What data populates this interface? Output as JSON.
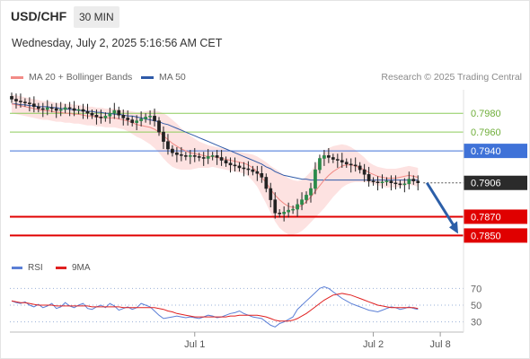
{
  "header": {
    "symbol": "USD/CHF",
    "timeframe": "30 MIN",
    "datetime": "Wednesday, July 2, 2025 5:16:56 AM CET"
  },
  "legend": {
    "ma20": {
      "label": "MA 20 + Bollinger Bands",
      "color": "#f28b86"
    },
    "ma50": {
      "label": "MA 50",
      "color": "#2f5aa8"
    }
  },
  "copyright": "Research © 2025 Trading Central",
  "rsi_legend": {
    "rsi": {
      "label": "RSI",
      "color": "#5b7fd6"
    },
    "ma9": {
      "label": "9MA",
      "color": "#e02020"
    }
  },
  "chart_data": [
    {
      "type": "candlestick",
      "title": "USD/CHF",
      "interval": "30 MIN",
      "ylim": [
        0.7838,
        0.8005
      ],
      "x_tick_labels": [
        "Jul 1",
        "Jul 2",
        "Jul 8"
      ],
      "x_tick_bar_index": [
        41,
        81,
        96
      ],
      "grid": false,
      "current_price": 0.7906,
      "levels": [
        {
          "value": 0.798,
          "label": "0.7980",
          "style": "thin-green",
          "color": "#8ccc5a"
        },
        {
          "value": 0.796,
          "label": "0.7960",
          "style": "thin-green",
          "color": "#8ccc5a"
        },
        {
          "value": 0.794,
          "label": "0.7940",
          "style": "resistance",
          "color": "#3f72d8"
        },
        {
          "value": 0.787,
          "label": "0.7870",
          "style": "support",
          "color": "#e00000"
        },
        {
          "value": 0.785,
          "label": "0.7850",
          "style": "support",
          "color": "#e00000"
        }
      ],
      "closes": [
        0.7995,
        0.7993,
        0.7992,
        0.7991,
        0.799,
        0.7987,
        0.7985,
        0.7984,
        0.7986,
        0.7985,
        0.7983,
        0.7984,
        0.7986,
        0.7985,
        0.7983,
        0.7984,
        0.7982,
        0.798,
        0.7978,
        0.7976,
        0.7975,
        0.7977,
        0.798,
        0.7983,
        0.7978,
        0.7975,
        0.7973,
        0.797,
        0.7972,
        0.7974,
        0.7976,
        0.7977,
        0.7972,
        0.796,
        0.795,
        0.7942,
        0.7938,
        0.7936,
        0.7935,
        0.7934,
        0.7935,
        0.7934,
        0.7933,
        0.7932,
        0.7934,
        0.7935,
        0.7933,
        0.793,
        0.7927,
        0.7925,
        0.7924,
        0.7922,
        0.7921,
        0.792,
        0.7918,
        0.7916,
        0.7912,
        0.79,
        0.7888,
        0.7874,
        0.7873,
        0.7875,
        0.7877,
        0.7878,
        0.7883,
        0.7888,
        0.7893,
        0.79,
        0.792,
        0.7932,
        0.7935,
        0.7933,
        0.7931,
        0.793,
        0.7928,
        0.7926,
        0.7925,
        0.7924,
        0.792,
        0.7915,
        0.7908,
        0.7907,
        0.7906,
        0.7907,
        0.7908,
        0.7906,
        0.7905,
        0.7904,
        0.7905,
        0.791,
        0.7908,
        0.7906
      ],
      "ma20": [
        0.799,
        0.7989,
        0.7988,
        0.7987,
        0.7986,
        0.7985,
        0.7984,
        0.7983,
        0.7983,
        0.7982,
        0.7981,
        0.7981,
        0.798,
        0.798,
        0.7979,
        0.7979,
        0.7978,
        0.7977,
        0.7977,
        0.7976,
        0.7976,
        0.7975,
        0.7975,
        0.7975,
        0.7974,
        0.7973,
        0.7972,
        0.797,
        0.7968,
        0.7967,
        0.7966,
        0.7965,
        0.7963,
        0.796,
        0.7956,
        0.7952,
        0.7948,
        0.7945,
        0.7942,
        0.794,
        0.7938,
        0.7937,
        0.7936,
        0.7935,
        0.7934,
        0.7934,
        0.7933,
        0.7932,
        0.7931,
        0.793,
        0.7929,
        0.7928,
        0.7927,
        0.7925,
        0.7922,
        0.7918,
        0.7912,
        0.7906,
        0.7899,
        0.7893,
        0.7888,
        0.7884,
        0.7881,
        0.788,
        0.788,
        0.7882,
        0.7886,
        0.7891,
        0.7897,
        0.7903,
        0.7909,
        0.7914,
        0.7918,
        0.7921,
        0.7924,
        0.7925,
        0.7925,
        0.7924,
        0.7922,
        0.792,
        0.7917,
        0.7915,
        0.7913,
        0.7912,
        0.7911,
        0.7911,
        0.7911,
        0.7912,
        0.7913,
        0.7914,
        0.7913,
        0.7912
      ],
      "ma50": [
        0.799,
        0.799,
        0.7989,
        0.7989,
        0.7988,
        0.7988,
        0.7987,
        0.7987,
        0.7987,
        0.7986,
        0.7986,
        0.7985,
        0.7985,
        0.7984,
        0.7984,
        0.7983,
        0.7983,
        0.7982,
        0.7982,
        0.7981,
        0.7981,
        0.798,
        0.798,
        0.7979,
        0.7979,
        0.7978,
        0.7977,
        0.7977,
        0.7976,
        0.7975,
        0.7974,
        0.7973,
        0.7972,
        0.7971,
        0.7969,
        0.7968,
        0.7966,
        0.7964,
        0.7962,
        0.796,
        0.7958,
        0.7956,
        0.7954,
        0.7952,
        0.795,
        0.7948,
        0.7946,
        0.7944,
        0.7942,
        0.794,
        0.7938,
        0.7936,
        0.7934,
        0.7932,
        0.793,
        0.7928,
        0.7926,
        0.7923,
        0.7921,
        0.7918,
        0.7916,
        0.7914,
        0.7913,
        0.7912,
        0.7911,
        0.791,
        0.791,
        0.7909,
        0.7909,
        0.7909,
        0.7909,
        0.7909,
        0.7909,
        0.7909,
        0.7909,
        0.7909,
        0.7909,
        0.7909,
        0.7909,
        0.7909,
        0.7909,
        0.7909,
        0.7909,
        0.7909,
        0.7909,
        0.7909,
        0.7909,
        0.7909,
        0.7909,
        0.7909,
        0.7909,
        0.7909
      ],
      "bb_width": [
        0.001,
        0.001,
        0.001,
        0.001,
        0.001,
        0.001,
        0.001,
        0.001,
        0.001,
        0.001,
        0.001,
        0.001,
        0.001,
        0.001,
        0.001,
        0.001,
        0.001,
        0.001,
        0.001,
        0.001,
        0.001,
        0.001,
        0.001,
        0.001,
        0.001,
        0.001,
        0.0011,
        0.0012,
        0.0013,
        0.0014,
        0.0016,
        0.0018,
        0.002,
        0.0022,
        0.0024,
        0.0025,
        0.0025,
        0.0024,
        0.0022,
        0.002,
        0.0018,
        0.0016,
        0.0014,
        0.0013,
        0.0012,
        0.0011,
        0.0011,
        0.0011,
        0.0011,
        0.0011,
        0.0011,
        0.0011,
        0.0011,
        0.0012,
        0.0014,
        0.0016,
        0.0019,
        0.0022,
        0.0025,
        0.0028,
        0.003,
        0.003,
        0.003,
        0.0029,
        0.0028,
        0.0027,
        0.0027,
        0.0027,
        0.0028,
        0.0029,
        0.003,
        0.0029,
        0.0027,
        0.0025,
        0.0023,
        0.0021,
        0.0019,
        0.0017,
        0.0015,
        0.0013,
        0.0011,
        0.001,
        0.001,
        0.001,
        0.001,
        0.001,
        0.001,
        0.001,
        0.001,
        0.001,
        0.001,
        0.001
      ],
      "forecast": {
        "from": 0.7906,
        "to": 0.785
      }
    },
    {
      "type": "line",
      "title": "RSI",
      "ylim": [
        20,
        80
      ],
      "yticks": [
        70,
        50,
        30
      ],
      "series": [
        {
          "name": "RSI",
          "values": [
            55,
            53,
            52,
            54,
            50,
            48,
            51,
            47,
            49,
            52,
            46,
            48,
            53,
            49,
            47,
            50,
            52,
            46,
            45,
            48,
            50,
            47,
            52,
            49,
            44,
            46,
            48,
            45,
            47,
            52,
            50,
            48,
            43,
            38,
            34,
            35,
            36,
            37,
            36,
            35,
            36,
            35,
            34,
            36,
            38,
            37,
            35,
            36,
            38,
            40,
            41,
            43,
            40,
            38,
            36,
            35,
            34,
            30,
            26,
            24,
            28,
            30,
            33,
            36,
            45,
            50,
            55,
            60,
            65,
            70,
            72,
            70,
            66,
            62,
            58,
            55,
            52,
            50,
            48,
            46,
            44,
            43,
            42,
            44,
            46,
            48,
            47,
            45,
            46,
            48,
            46,
            45
          ]
        },
        {
          "name": "9MA",
          "values": [
            55,
            54,
            53,
            53,
            52,
            51,
            50,
            50,
            50,
            50,
            49,
            49,
            49,
            49,
            49,
            49,
            49,
            49,
            48,
            48,
            48,
            48,
            48,
            48,
            48,
            47,
            47,
            47,
            47,
            47,
            47,
            47,
            47,
            46,
            45,
            43,
            42,
            40,
            39,
            38,
            37,
            36,
            36,
            36,
            36,
            36,
            36,
            36,
            36,
            37,
            37,
            38,
            38,
            38,
            38,
            38,
            37,
            36,
            34,
            32,
            31,
            31,
            31,
            32,
            34,
            37,
            40,
            44,
            48,
            52,
            56,
            59,
            62,
            63,
            64,
            63,
            62,
            60,
            58,
            56,
            54,
            52,
            50,
            49,
            48,
            47,
            47,
            47,
            47,
            47,
            47,
            46
          ]
        }
      ]
    }
  ]
}
